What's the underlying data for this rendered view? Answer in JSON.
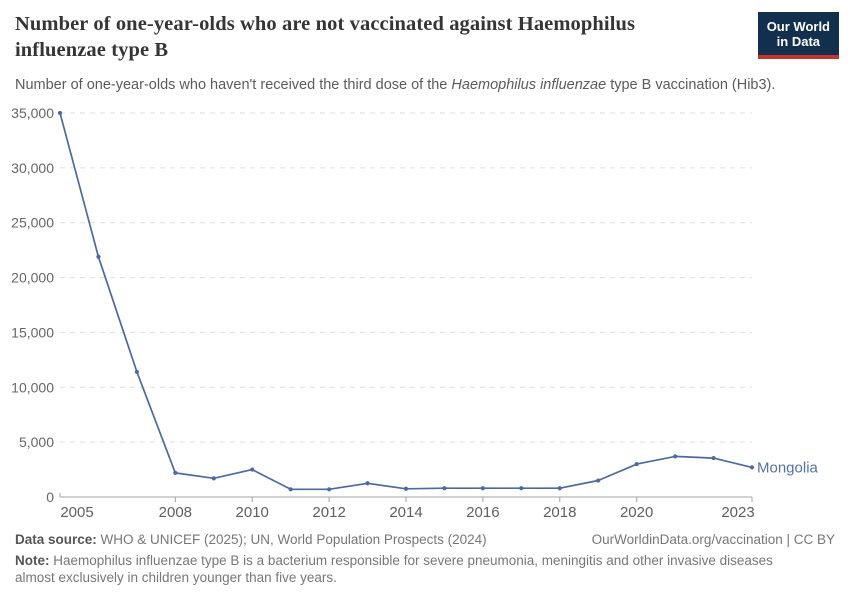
{
  "header": {
    "title": "Number of one-year-olds who are not vaccinated against Haemophilus influenzae type B",
    "subtitle_prefix": "Number of one-year-olds who haven't received the third dose of the ",
    "subtitle_italic": "Haemophilus influenzae",
    "subtitle_suffix": " type B vaccination (Hib3).",
    "logo": {
      "line1": "Our World",
      "line2": "in Data"
    }
  },
  "chart_data": {
    "type": "line",
    "title": "Number of one-year-olds who are not vaccinated against Haemophilus influenzae type B",
    "xlabel": "",
    "ylabel": "",
    "xlim": [
      2005,
      2023
    ],
    "ylim": [
      0,
      35000
    ],
    "grid": "horizontal-dashed",
    "legend_position": "end-of-line-label",
    "x_tick_labels": [
      2005,
      2008,
      2010,
      2012,
      2014,
      2016,
      2018,
      2020,
      2023
    ],
    "y_tick_labels": [
      "0",
      "5,000",
      "10,000",
      "15,000",
      "20,000",
      "25,000",
      "30,000",
      "35,000"
    ],
    "y_ticks": [
      0,
      5000,
      10000,
      15000,
      20000,
      25000,
      30000,
      35000
    ],
    "series": [
      {
        "name": "Mongolia",
        "x": [
          2005,
          2006,
          2007,
          2008,
          2009,
          2010,
          2011,
          2012,
          2013,
          2014,
          2015,
          2016,
          2017,
          2018,
          2019,
          2020,
          2021,
          2022,
          2023
        ],
        "values": [
          35000,
          21900,
          11400,
          2200,
          1700,
          2500,
          700,
          700,
          1250,
          750,
          800,
          800,
          800,
          800,
          1500,
          3000,
          3700,
          3550,
          2700
        ]
      }
    ]
  },
  "footer": {
    "datasource_label": "Data source:",
    "datasource_text": " WHO & UNICEF (2025); UN, World Population Prospects (2024)",
    "link_text": "OurWorldinData.org/vaccination | CC BY",
    "note_label": "Note:",
    "note_text": " Haemophilus influenzae type B is a bacterium responsible for severe pneumonia, meningitis and other invasive diseases almost exclusively in children younger than five years."
  },
  "colors": {
    "line": "#4c6a9f",
    "end_label": "#5571a5",
    "gridline": "#dddddd",
    "axis": "#a3a3a3",
    "tick_text": "#666666",
    "logo_navy": "#12304e",
    "logo_red": "#c5342c"
  }
}
